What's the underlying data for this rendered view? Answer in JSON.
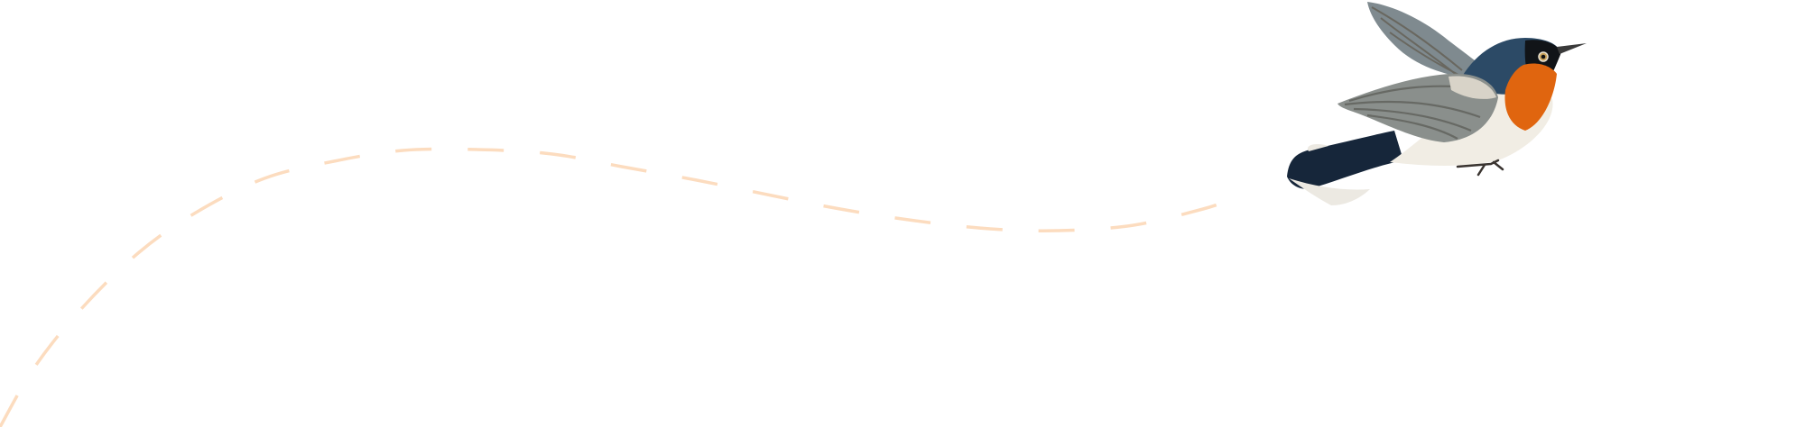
{
  "colors": {
    "background": "#ffffff",
    "flight_path": "#fcdcbf",
    "bird_breast": "#e0650f",
    "bird_head": "#2c4a66",
    "bird_wing": "#8a8f8c",
    "bird_belly": "#f1ede4",
    "bird_tail": "#16263a"
  },
  "icons": {
    "flight_path": "dashed-curve",
    "bird": "flycatcher-illustration"
  }
}
